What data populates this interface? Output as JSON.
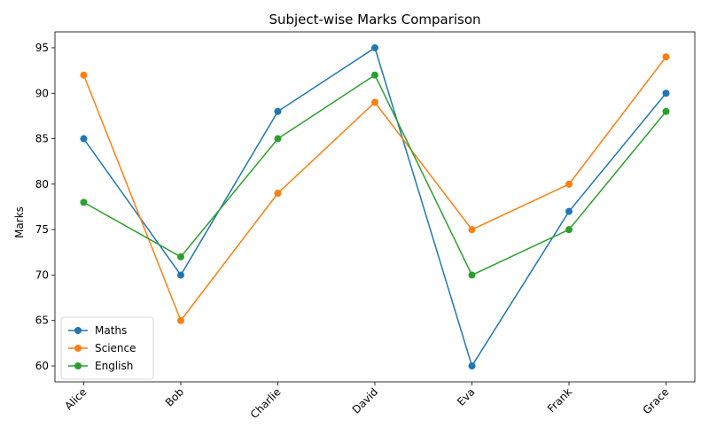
{
  "chart_data": {
    "type": "line",
    "title": "Subject-wise Marks Comparison",
    "xlabel": "",
    "ylabel": "Marks",
    "categories": [
      "Alice",
      "Bob",
      "Charlie",
      "David",
      "Eva",
      "Frank",
      "Grace"
    ],
    "ylim": [
      58.25,
      96.75
    ],
    "yticks": [
      "60",
      "65",
      "70",
      "75",
      "80",
      "85",
      "90",
      "95"
    ],
    "legend_position": "lower-left",
    "grid": false,
    "series": [
      {
        "name": "Maths",
        "color": "#1f77b4",
        "values": [
          85,
          70,
          88,
          95,
          60,
          77,
          90
        ]
      },
      {
        "name": "Science",
        "color": "#ff7f0e",
        "values": [
          92,
          65,
          79,
          89,
          75,
          80,
          94
        ]
      },
      {
        "name": "English",
        "color": "#2ca02c",
        "values": [
          78,
          72,
          85,
          92,
          70,
          75,
          88
        ]
      }
    ]
  }
}
